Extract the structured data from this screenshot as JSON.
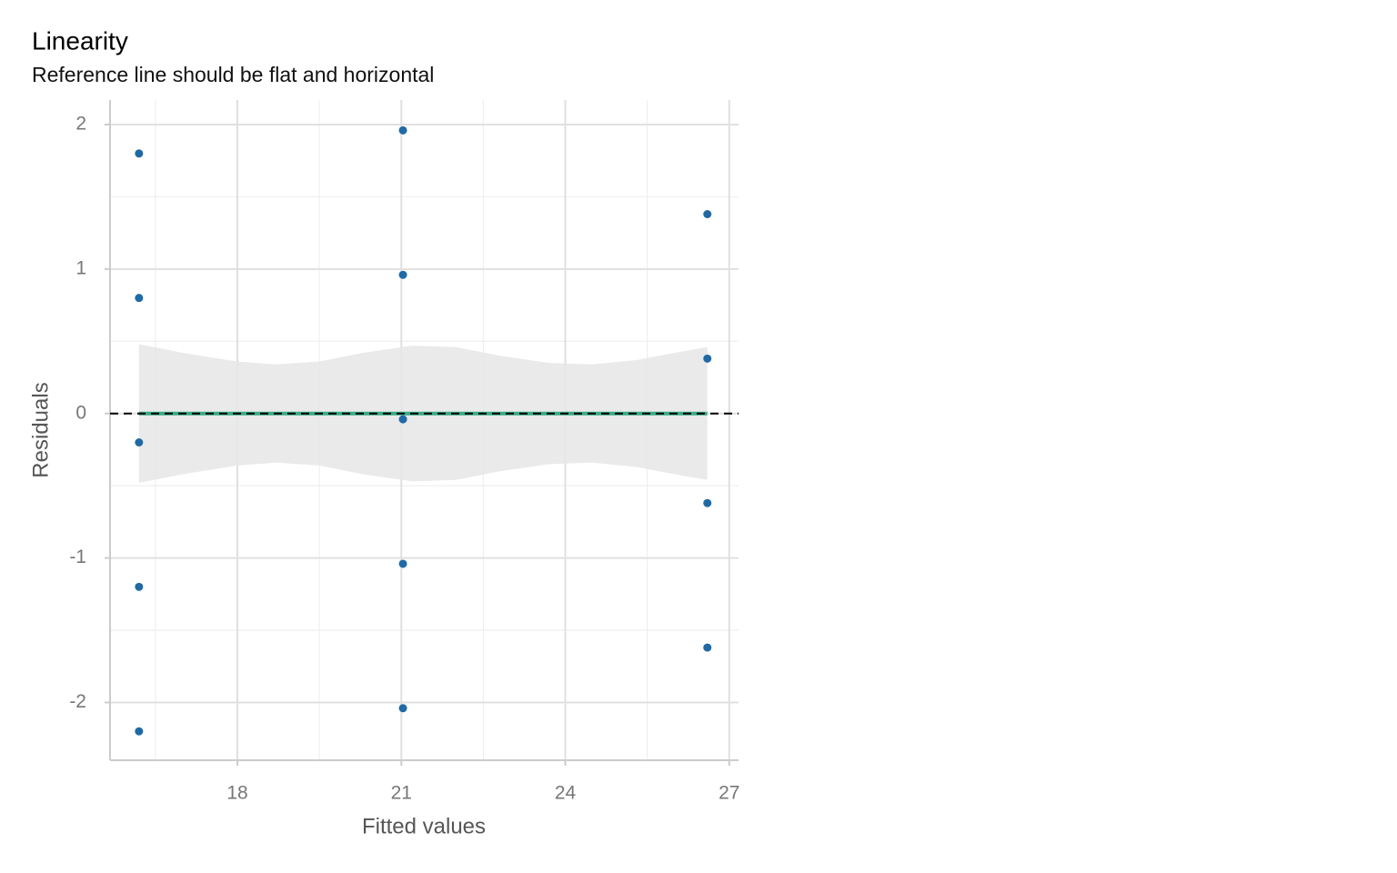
{
  "chart_data": {
    "type": "scatter",
    "title": "Linearity",
    "subtitle": "Reference line should be flat and horizontal",
    "x_label": "Fitted values",
    "y_label": "Residuals",
    "xlim": [
      15.67,
      27.17
    ],
    "xticks": [
      18,
      21,
      24,
      27
    ],
    "minor_xticks": [
      16.5,
      19.5,
      22.5,
      25.5
    ],
    "ylim": [
      -2.4,
      2.17
    ],
    "yticks": [
      -2,
      -1,
      0,
      1,
      2
    ],
    "minor_yticks": [
      -1.5,
      -0.5,
      0.5,
      1.5
    ],
    "grid": true,
    "series": [
      {
        "color": "#1f6aa5",
        "x": [
          16.2,
          16.2,
          16.2,
          16.2,
          16.2,
          21.03,
          21.03,
          21.03,
          21.03,
          21.03,
          26.6,
          26.6,
          26.6,
          26.6
        ],
        "values": [
          1.8,
          0.8,
          -0.2,
          -1.2,
          -2.2,
          1.96,
          0.96,
          -0.04,
          -1.04,
          -2.04,
          1.38,
          0.38,
          -0.62,
          -1.62
        ]
      }
    ],
    "band": {
      "color": "#e6e6e6",
      "x": [
        16.2,
        17,
        18,
        18.7,
        19.5,
        20.3,
        21.2,
        22,
        22.8,
        23.7,
        24.5,
        25.3,
        26.0,
        26.6
      ],
      "upper": [
        0.48,
        0.42,
        0.36,
        0.34,
        0.36,
        0.42,
        0.47,
        0.46,
        0.4,
        0.35,
        0.34,
        0.37,
        0.42,
        0.46
      ],
      "lower": [
        -0.48,
        -0.42,
        -0.36,
        -0.34,
        -0.36,
        -0.42,
        -0.47,
        -0.46,
        -0.4,
        -0.35,
        -0.34,
        -0.37,
        -0.42,
        -0.46
      ]
    },
    "fit": {
      "color": "#3aaa85",
      "x": [
        16.2,
        26.6
      ],
      "values": [
        0,
        0
      ]
    },
    "reference": 0
  }
}
